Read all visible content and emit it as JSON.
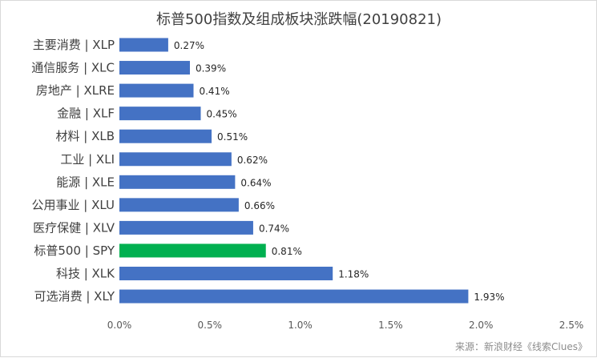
{
  "chart_data": {
    "type": "bar",
    "orientation": "horizontal",
    "title": "标普500指数及组成板块涨跌幅(20190821)",
    "categories": [
      "主要消费 | XLP",
      "通信服务 | XLC",
      "房地产 | XLRE",
      "金融 | XLF",
      "材料 | XLB",
      "工业 | XLI",
      "能源 | XLE",
      "公用事业 | XLU",
      "医疗保健 | XLV",
      "标普500 | SPY",
      "科技 | XLK",
      "可选消费 | XLY"
    ],
    "values": [
      0.27,
      0.39,
      0.41,
      0.45,
      0.51,
      0.62,
      0.64,
      0.66,
      0.74,
      0.81,
      1.18,
      1.93
    ],
    "value_labels": [
      "0.27%",
      "0.39%",
      "0.41%",
      "0.45%",
      "0.51%",
      "0.62%",
      "0.64%",
      "0.66%",
      "0.74%",
      "0.81%",
      "1.18%",
      "1.93%"
    ],
    "xlim": [
      0,
      2.5
    ],
    "xticks": [
      0,
      0.5,
      1.0,
      1.5,
      2.0,
      2.5
    ],
    "xtick_labels": [
      "0.0%",
      "0.5%",
      "1.0%",
      "1.5%",
      "2.0%",
      "2.5%"
    ],
    "xlabel": "",
    "ylabel": "",
    "grid": false,
    "legend": "none",
    "colors": {
      "bar": "#4472c4",
      "highlight": "#00b050",
      "highlight_category": "标普500 | SPY"
    }
  },
  "source_note": "来源：新浪财经《线索Clues》"
}
